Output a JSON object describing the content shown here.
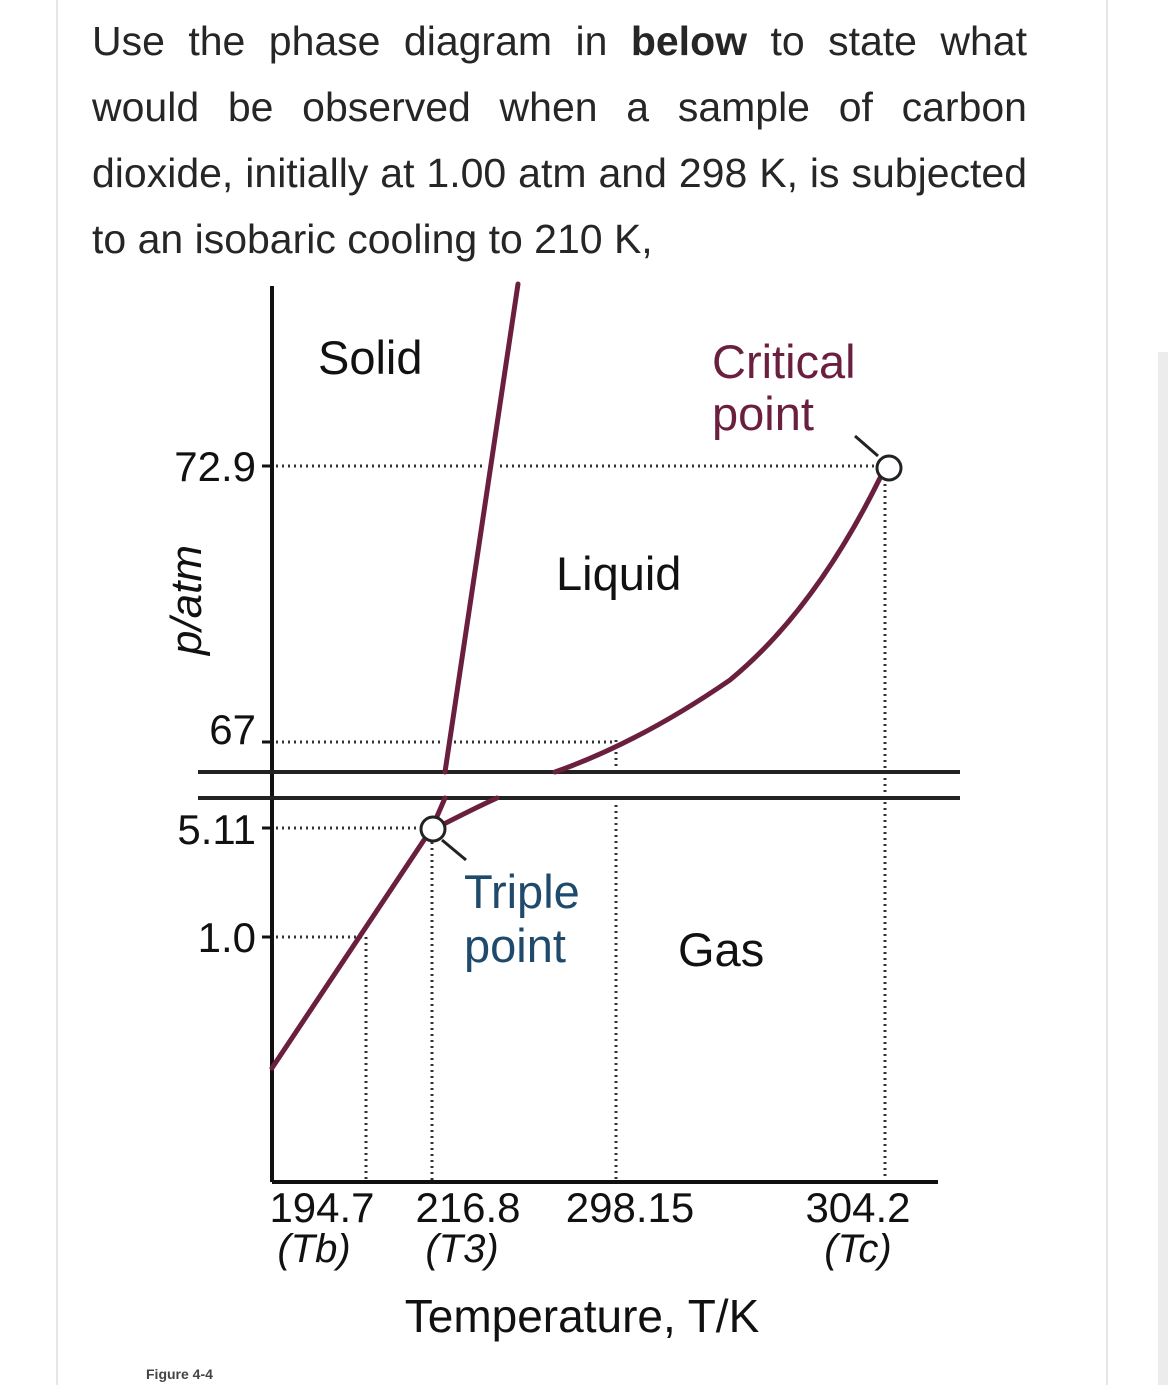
{
  "question": {
    "before_bold": "Use the phase diagram in ",
    "bold": "below",
    "after_bold": " to state what would be observed when a sample of carbon dioxide, initially at 1.00 atm and 298 K, is subjected to an isobaric cooling to 210 K,"
  },
  "diagram": {
    "regions": {
      "solid": "Solid",
      "liquid": "Liquid",
      "gas": "Gas"
    },
    "critical_point": {
      "line1": "Critical",
      "line2": "point"
    },
    "triple_point": {
      "line1": "Triple",
      "line2": "point"
    },
    "y_axis": {
      "label": "p/atm",
      "ticks": [
        "72.9",
        "67",
        "5.11",
        "1.0"
      ]
    },
    "x_axis": {
      "label": "Temperature, T/K",
      "ticks": [
        {
          "value": "194.7",
          "sub_label": "(Tb)"
        },
        {
          "value": "216.8",
          "sub_label": "(T3)"
        },
        {
          "value": "298.15",
          "sub_label": ""
        },
        {
          "value": "304.2",
          "sub_label": "(Tc)"
        }
      ]
    },
    "colors": {
      "phase_line": "#6b1f3f",
      "triple_text": "#1f4a6b",
      "critical_text": "#6b1f3f",
      "axis": "#111111",
      "dotted": "#333333"
    }
  },
  "caption": "Figure 4-4"
}
